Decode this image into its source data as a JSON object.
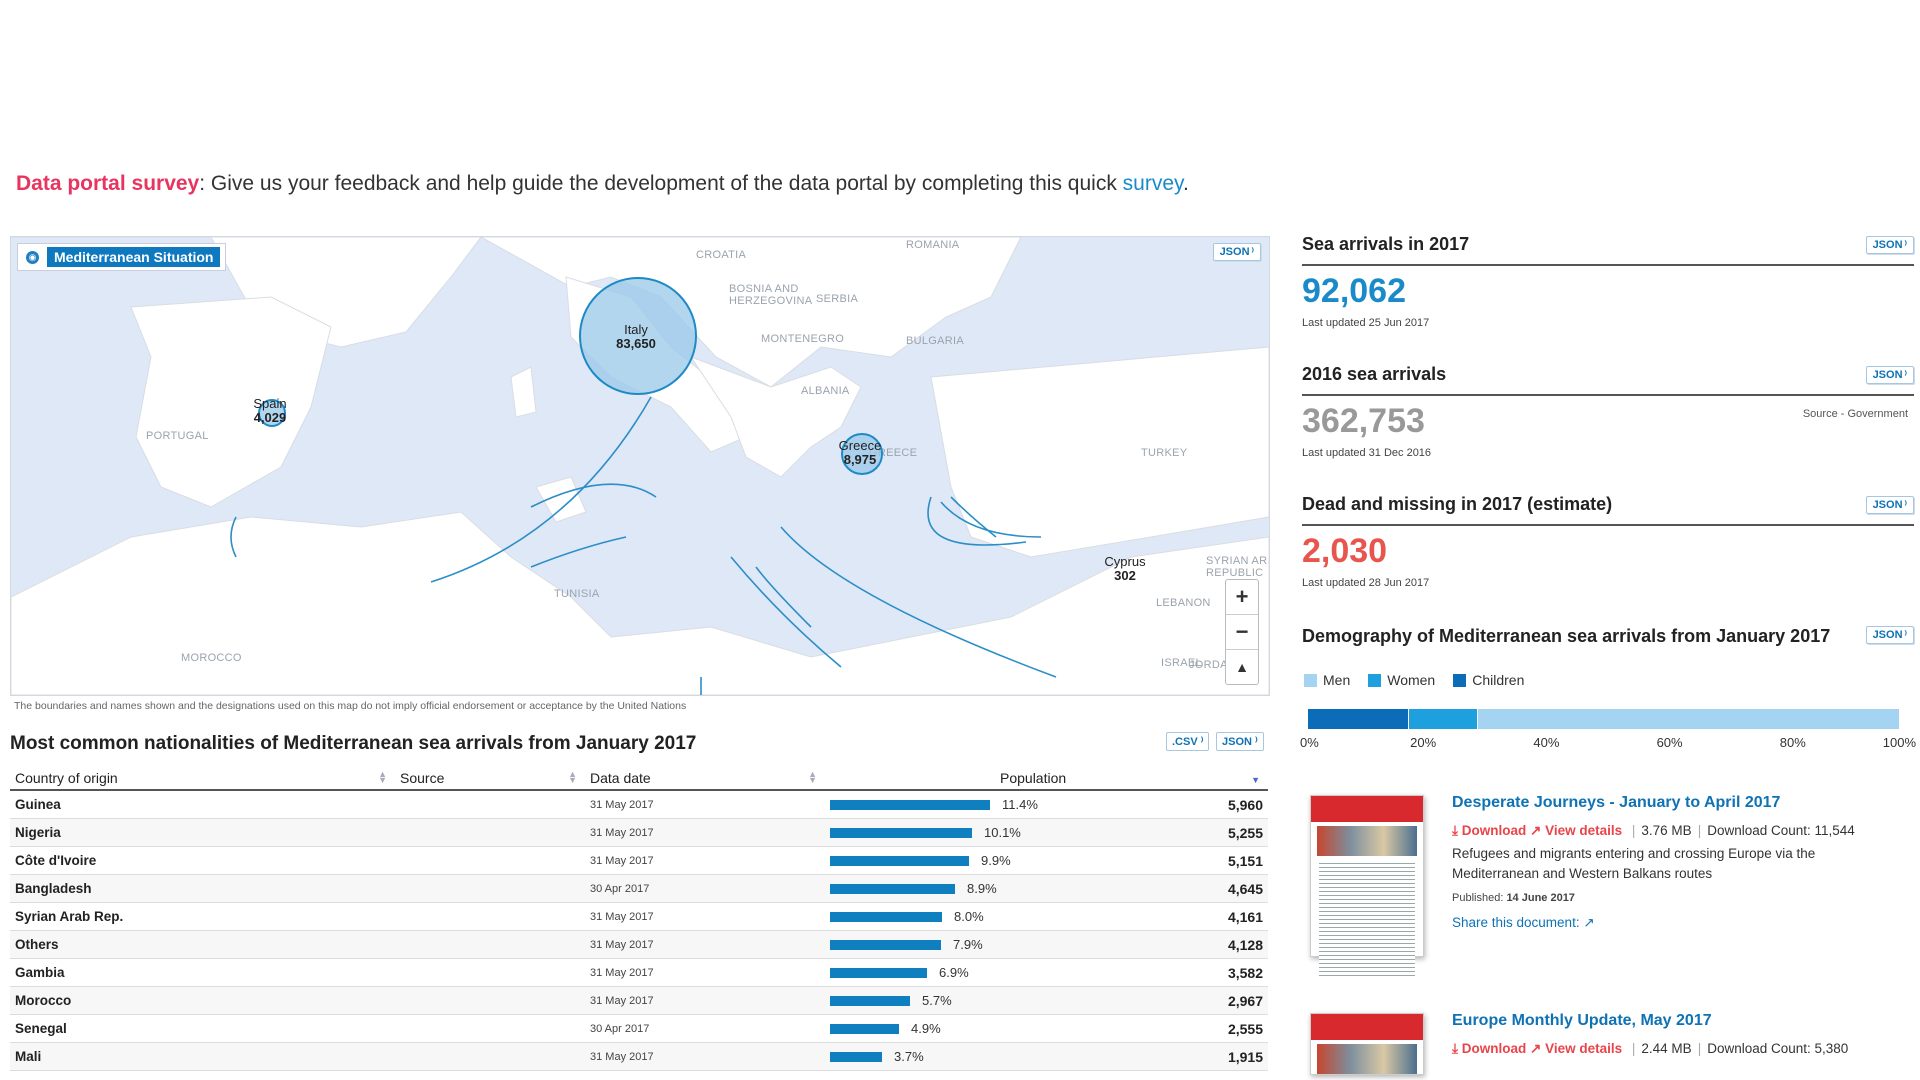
{
  "survey": {
    "highlight": "Data portal survey",
    "text": ": Give us your feedback and help guide the development of the data portal by completing this quick ",
    "link": "survey",
    "end": "."
  },
  "map": {
    "title": "Mediterranean Situation",
    "json_label": "JSON",
    "countries": [
      "ROMANIA",
      "CROATIA",
      "BOSNIA AND HERZEGOVINA",
      "SERBIA",
      "MONTENEGRO",
      "BULGARIA",
      "ALBANIA",
      "PORTUGAL",
      "TURKEY",
      "TUNISIA",
      "MOROCCO",
      "LEBANON",
      "ISRAEL",
      "JORDAN",
      "SYRIAN AR REPUBLIC",
      "GREECE"
    ],
    "bubbles": [
      {
        "name": "Italy",
        "value": "83,650"
      },
      {
        "name": "Spain",
        "value": "4,029"
      },
      {
        "name": "Greece",
        "value": "8,975"
      },
      {
        "name": "Cyprus",
        "value": "302"
      }
    ],
    "zoom_in": "+",
    "zoom_out": "−",
    "north": "▲",
    "disclaimer": "The boundaries and names shown and the designations used on this map do not imply official endorsement or acceptance by the United Nations"
  },
  "table": {
    "title": "Most common nationalities of Mediterranean sea arrivals from January 2017",
    "csv_label": ".CSV",
    "json_label": "JSON",
    "headers": [
      "Country of origin",
      "Source",
      "Data date",
      "Population"
    ],
    "rows": [
      {
        "country": "Guinea",
        "date": "31 May 2017",
        "pct": "11.4%",
        "share": 11.4,
        "pop": "5,960"
      },
      {
        "country": "Nigeria",
        "date": "31 May 2017",
        "pct": "10.1%",
        "share": 10.1,
        "pop": "5,255"
      },
      {
        "country": "Côte d'Ivoire",
        "date": "31 May 2017",
        "pct": "9.9%",
        "share": 9.9,
        "pop": "5,151"
      },
      {
        "country": "Bangladesh",
        "date": "30 Apr 2017",
        "pct": "8.9%",
        "share": 8.9,
        "pop": "4,645"
      },
      {
        "country": "Syrian Arab Rep.",
        "date": "31 May 2017",
        "pct": "8.0%",
        "share": 8.0,
        "pop": "4,161"
      },
      {
        "country": "Others",
        "date": "31 May 2017",
        "pct": "7.9%",
        "share": 7.9,
        "pop": "4,128"
      },
      {
        "country": "Gambia",
        "date": "31 May 2017",
        "pct": "6.9%",
        "share": 6.9,
        "pop": "3,582"
      },
      {
        "country": "Morocco",
        "date": "31 May 2017",
        "pct": "5.7%",
        "share": 5.7,
        "pop": "2,967"
      },
      {
        "country": "Senegal",
        "date": "30 Apr 2017",
        "pct": "4.9%",
        "share": 4.9,
        "pop": "2,555"
      },
      {
        "country": "Mali",
        "date": "31 May 2017",
        "pct": "3.7%",
        "share": 3.7,
        "pop": "1,915"
      }
    ]
  },
  "stats": {
    "sea2017": {
      "title": "Sea arrivals in 2017",
      "value": "92,062",
      "updated": "Last updated 25 Jun 2017",
      "color": "#1a8bc8"
    },
    "sea2016": {
      "title": "2016 sea arrivals",
      "value": "362,753",
      "updated": "Last updated 31 Dec 2016",
      "source": "Source - Government",
      "color": "#999999"
    },
    "dead": {
      "title": "Dead and missing in 2017 (estimate)",
      "value": "2,030",
      "updated": "Last updated 28 Jun 2017",
      "color": "#e8554e"
    },
    "json_label": "JSON"
  },
  "demography": {
    "title": "Demography of Mediterranean sea arrivals from January 2017",
    "json_label": "JSON",
    "legend": [
      "Men",
      "Women",
      "Children"
    ],
    "colors": {
      "men": "#a4d4f2",
      "women": "#1ea0de",
      "children": "#0b6cb8"
    },
    "segments": {
      "children": 0.17,
      "women": 0.115,
      "men": 0.715
    },
    "ticks": [
      "0%",
      "20%",
      "40%",
      "60%",
      "80%",
      "100%"
    ]
  },
  "documents": [
    {
      "title": "Desperate Journeys - January to April 2017",
      "download": "Download",
      "view": "View details",
      "size": "3.76 MB",
      "count": "Download Count: 11,544",
      "desc": "Refugees and migrants entering and crossing Europe via the Mediterranean and Western Balkans routes",
      "published_label": "Published:",
      "published": "14 June 2017",
      "share": "Share this document:"
    },
    {
      "title": "Europe Monthly Update, May 2017",
      "download": "Download",
      "view": "View details",
      "size": "2.44 MB",
      "count": "Download Count: 5,380"
    }
  ]
}
